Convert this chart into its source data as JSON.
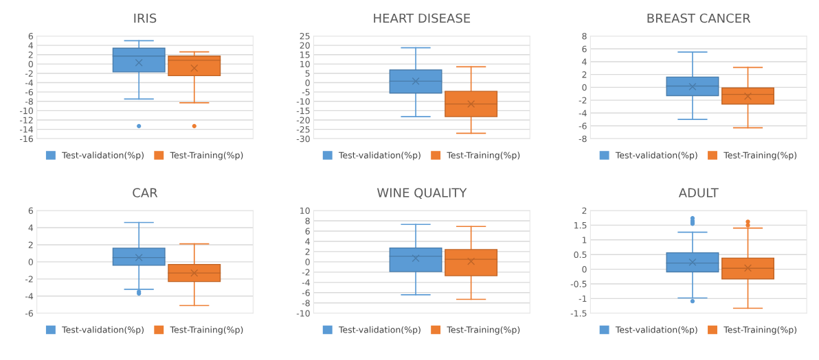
{
  "chart_data": [
    {
      "type": "box",
      "title": "IRIS",
      "categories": [
        null
      ],
      "ylim": [
        -16,
        6
      ],
      "yticks": [
        -16,
        -14,
        -12,
        -10,
        -8,
        -6,
        -4,
        -2,
        0,
        2,
        4,
        6
      ],
      "grid": "y",
      "legend": "bottom",
      "tick_labels": "y",
      "marker": "cross",
      "series": [
        {
          "name": "Test-validation(%p)",
          "color": "#5b9bd5",
          "boxes": [
            {
              "low": -7.5,
              "q1": -1.7,
              "median": 1.7,
              "q3": 3.4,
              "high": 5.0,
              "mean": 0.3,
              "outliers": [
                -13.3
              ]
            }
          ]
        },
        {
          "name": "Test-Training(%p)",
          "color": "#ed7d31",
          "boxes": [
            {
              "low": -8.3,
              "q1": -2.5,
              "median": 0.8,
              "q3": 1.7,
              "high": 2.6,
              "mean": -0.9,
              "outliers": [
                -13.3
              ]
            }
          ]
        }
      ]
    },
    {
      "type": "box",
      "title": "HEART DISEASE",
      "categories": [
        null
      ],
      "ylim": [
        -30,
        25
      ],
      "yticks": [
        -30,
        -25,
        -20,
        -15,
        -10,
        -5,
        0,
        5,
        10,
        15,
        20,
        25
      ],
      "grid": "y",
      "legend": "bottom",
      "tick_labels": "y",
      "marker": "cross",
      "series": [
        {
          "name": "Test-validation(%p)",
          "color": "#5b9bd5",
          "boxes": [
            {
              "low": -18.2,
              "q1": -5.6,
              "median": 0.8,
              "q3": 6.8,
              "high": 18.7,
              "mean": 0.8
            }
          ]
        },
        {
          "name": "Test-Training(%p)",
          "color": "#ed7d31",
          "boxes": [
            {
              "low": -27.1,
              "q1": -18.2,
              "median": -11.4,
              "q3": -4.6,
              "high": 8.5,
              "mean": -11.4
            }
          ]
        }
      ]
    },
    {
      "type": "box",
      "title": "BREAST CANCER",
      "categories": [
        null
      ],
      "ylim": [
        -8,
        8
      ],
      "yticks": [
        -8,
        -6,
        -4,
        -2,
        0,
        2,
        4,
        6,
        8
      ],
      "grid": "y",
      "legend": "bottom",
      "tick_labels": "y",
      "marker": "cross",
      "series": [
        {
          "name": "Test-validation(%p)",
          "color": "#5b9bd5",
          "boxes": [
            {
              "low": -5.0,
              "q1": -1.3,
              "median": 0.2,
              "q3": 1.6,
              "high": 5.5,
              "mean": 0.1
            }
          ]
        },
        {
          "name": "Test-Training(%p)",
          "color": "#ed7d31",
          "boxes": [
            {
              "low": -6.3,
              "q1": -2.6,
              "median": -1.1,
              "q3": -0.1,
              "high": 3.1,
              "mean": -1.4
            }
          ]
        }
      ]
    },
    {
      "type": "box",
      "title": "CAR",
      "categories": [
        null
      ],
      "ylim": [
        -6,
        6
      ],
      "yticks": [
        -6,
        -4,
        -2,
        0,
        2,
        4,
        6
      ],
      "grid": "y",
      "legend": "bottom",
      "tick_labels": "y",
      "marker": "cross",
      "series": [
        {
          "name": "Test-validation(%p)",
          "color": "#5b9bd5",
          "boxes": [
            {
              "low": -3.2,
              "q1": -0.4,
              "median": 0.5,
              "q3": 1.6,
              "high": 4.6,
              "mean": 0.5,
              "outliers": [
                -3.5,
                -3.7
              ]
            }
          ]
        },
        {
          "name": "Test-Training(%p)",
          "color": "#ed7d31",
          "boxes": [
            {
              "low": -5.1,
              "q1": -2.3,
              "median": -1.3,
              "q3": -0.3,
              "high": 2.1,
              "mean": -1.3
            }
          ]
        }
      ]
    },
    {
      "type": "box",
      "title": "WINE QUALITY",
      "categories": [
        null
      ],
      "ylim": [
        -10,
        10
      ],
      "yticks": [
        -10,
        -8,
        -6,
        -4,
        -2,
        0,
        2,
        4,
        6,
        8,
        10
      ],
      "grid": "y",
      "legend": "bottom",
      "tick_labels": "y",
      "marker": "cross",
      "series": [
        {
          "name": "Test-validation(%p)",
          "color": "#5b9bd5",
          "boxes": [
            {
              "low": -6.4,
              "q1": -1.9,
              "median": 1.1,
              "q3": 2.7,
              "high": 7.3,
              "mean": 0.7
            }
          ]
        },
        {
          "name": "Test-Training(%p)",
          "color": "#ed7d31",
          "boxes": [
            {
              "low": -7.3,
              "q1": -2.7,
              "median": 0.5,
              "q3": 2.4,
              "high": 6.9,
              "mean": 0.1
            }
          ]
        }
      ]
    },
    {
      "type": "box",
      "title": "ADULT",
      "categories": [
        null
      ],
      "ylim": [
        -1.5,
        2
      ],
      "yticks": [
        -1.5,
        -1,
        -0.5,
        0,
        0.5,
        1,
        1.5,
        2
      ],
      "grid": "y",
      "legend": "bottom",
      "tick_labels": "y",
      "marker": "cross",
      "series": [
        {
          "name": "Test-validation(%p)",
          "color": "#5b9bd5",
          "boxes": [
            {
              "low": -0.98,
              "q1": -0.09,
              "median": 0.21,
              "q3": 0.56,
              "high": 1.26,
              "mean": 0.24,
              "outliers": [
                1.55,
                1.6,
                1.65,
                1.74,
                -1.09
              ]
            }
          ]
        },
        {
          "name": "Test-Training(%p)",
          "color": "#ed7d31",
          "boxes": [
            {
              "low": -1.33,
              "q1": -0.33,
              "median": 0.03,
              "q3": 0.38,
              "high": 1.4,
              "mean": 0.04,
              "outliers": [
                1.5,
                1.62
              ]
            }
          ]
        }
      ]
    }
  ]
}
